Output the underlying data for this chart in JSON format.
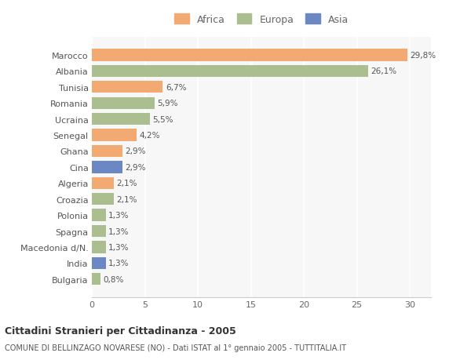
{
  "countries": [
    "Marocco",
    "Albania",
    "Tunisia",
    "Romania",
    "Ucraina",
    "Senegal",
    "Ghana",
    "Cina",
    "Algeria",
    "Croazia",
    "Polonia",
    "Spagna",
    "Macedonia d/N.",
    "India",
    "Bulgaria"
  ],
  "values": [
    29.8,
    26.1,
    6.7,
    5.9,
    5.5,
    4.2,
    2.9,
    2.9,
    2.1,
    2.1,
    1.3,
    1.3,
    1.3,
    1.3,
    0.8
  ],
  "labels": [
    "29,8%",
    "26,1%",
    "6,7%",
    "5,9%",
    "5,5%",
    "4,2%",
    "2,9%",
    "2,9%",
    "2,1%",
    "2,1%",
    "1,3%",
    "1,3%",
    "1,3%",
    "1,3%",
    "0,8%"
  ],
  "continents": [
    "Africa",
    "Europa",
    "Africa",
    "Europa",
    "Europa",
    "Africa",
    "Africa",
    "Asia",
    "Africa",
    "Europa",
    "Europa",
    "Europa",
    "Europa",
    "Asia",
    "Europa"
  ],
  "colors": {
    "Africa": "#F2AA72",
    "Europa": "#ABBE90",
    "Asia": "#6B88C4"
  },
  "title_line1": "Cittadini Stranieri per Cittadinanza - 2005",
  "title_line2": "COMUNE DI BELLINZAGO NOVARESE (NO) - Dati ISTAT al 1° gennaio 2005 - TUTTITALIA.IT",
  "xlim": [
    0,
    32
  ],
  "xticks": [
    0,
    5,
    10,
    15,
    20,
    25,
    30
  ],
  "background_color": "#ffffff",
  "bar_background": "#f7f7f7"
}
